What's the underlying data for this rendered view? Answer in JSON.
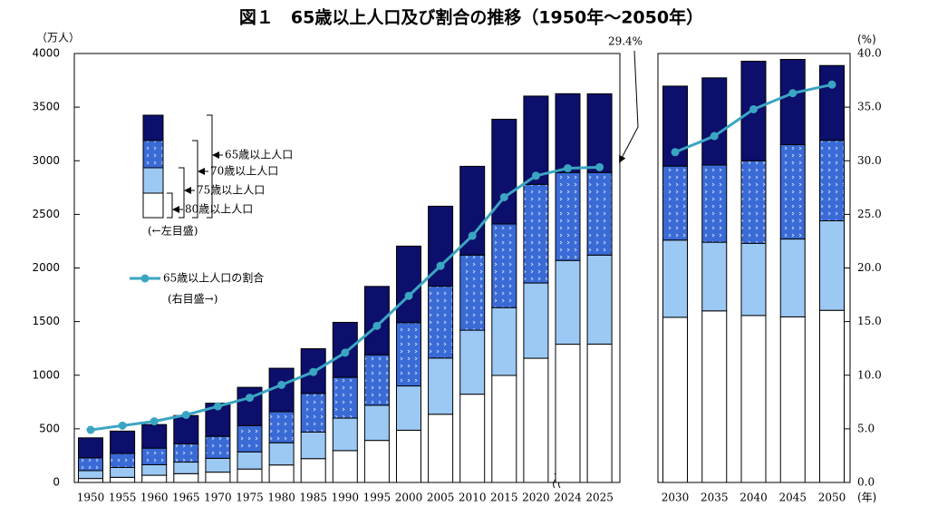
{
  "chart_data": {
    "type": "bar",
    "title": "図１　65歳以上人口及び割合の推移（1950年～2050年）",
    "y_unit": "（万人）",
    "y2_unit": "(%)",
    "x_unit": "(年)",
    "left_scale_note": "(←左目盛)",
    "right_scale_note": "(右目盛→)",
    "categories": [
      "1950",
      "1955",
      "1960",
      "1965",
      "1970",
      "1975",
      "1980",
      "1985",
      "1990",
      "1995",
      "2000",
      "2005",
      "2010",
      "2015",
      "2020",
      "2024",
      "2025",
      "2030",
      "2035",
      "2040",
      "2045",
      "2050"
    ],
    "series": [
      {
        "name": "80歳以上人口",
        "color": "#ffffff",
        "values": [
          37,
          48,
          67,
          82,
          96,
          125,
          163,
          222,
          297,
          392,
          487,
          636,
          823,
          998,
          1158,
          1289,
          1290,
          1540,
          1600,
          1557,
          1544,
          1605
        ]
      },
      {
        "name": "75歳以上人口",
        "color": "#9cc8f4",
        "values": [
          73,
          92,
          98,
          108,
          129,
          160,
          207,
          248,
          303,
          328,
          413,
          524,
          597,
          632,
          702,
          781,
          830,
          720,
          640,
          673,
          726,
          835
        ]
      },
      {
        "name": "70歳以上人口",
        "color": "#3a6ad6",
        "values": [
          120,
          130,
          155,
          170,
          205,
          245,
          290,
          360,
          380,
          470,
          590,
          670,
          700,
          780,
          920,
          820,
          770,
          690,
          720,
          770,
          880,
          750
        ]
      },
      {
        "name": "65歳以上人口",
        "color": "#0c0f6b",
        "values": [
          186,
          209,
          220,
          264,
          309,
          357,
          405,
          417,
          513,
          638,
          714,
          746,
          828,
          977,
          823,
          735,
          734,
          746,
          813,
          928,
          795,
          698
        ]
      },
      {
        "name": "65歳以上人口の割合",
        "color": "#3aa5c2",
        "axis": "y2",
        "type": "line",
        "values": [
          4.9,
          5.3,
          5.7,
          6.3,
          7.1,
          7.9,
          9.1,
          10.3,
          12.1,
          14.6,
          17.4,
          20.2,
          23.0,
          26.6,
          28.6,
          29.3,
          29.4,
          30.8,
          32.3,
          34.8,
          36.3,
          37.1
        ],
        "value_labels": [
          null,
          null,
          null,
          null,
          null,
          null,
          null,
          null,
          null,
          null,
          null,
          null,
          null,
          null,
          null,
          null,
          "29.4%",
          null,
          null,
          null,
          null,
          null
        ]
      }
    ],
    "ylim": [
      0,
      4000
    ],
    "yticks": [
      0,
      500,
      1000,
      1500,
      2000,
      2500,
      3000,
      3500,
      4000
    ],
    "y2lim": [
      0,
      40
    ],
    "y2ticks": [
      {
        "value": 0,
        "label": "0.0"
      },
      {
        "value": 5,
        "label": "5.0"
      },
      {
        "value": 10,
        "label": "10.0"
      },
      {
        "value": 15,
        "label": "15.0"
      },
      {
        "value": 20,
        "label": "20.0"
      },
      {
        "value": 25,
        "label": "25.0"
      },
      {
        "value": 30,
        "label": "30.0"
      },
      {
        "value": 35,
        "label": "35.0"
      },
      {
        "value": 40,
        "label": "40.0"
      }
    ]
  }
}
